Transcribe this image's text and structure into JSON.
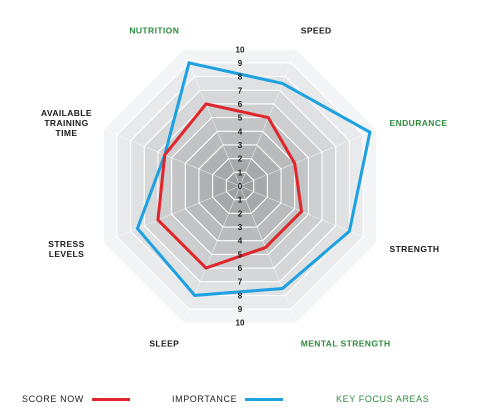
{
  "chart_data": {
    "type": "radar",
    "axes": [
      {
        "label": [
          "SPEED"
        ],
        "key_focus": false
      },
      {
        "label": [
          "ENDURANCE"
        ],
        "key_focus": true
      },
      {
        "label": [
          "STRENGTH"
        ],
        "key_focus": false
      },
      {
        "label": [
          "MENTAL STRENGTH"
        ],
        "key_focus": true
      },
      {
        "label": [
          "SLEEP"
        ],
        "key_focus": false
      },
      {
        "label": [
          "STRESS",
          "LEVELS"
        ],
        "key_focus": false
      },
      {
        "label": [
          "AVAILABLE",
          "TRAINING",
          "TIME"
        ],
        "key_focus": false
      },
      {
        "label": [
          "NUTRITION"
        ],
        "key_focus": true
      }
    ],
    "range": [
      0,
      10
    ],
    "upper_ticks": [
      "1",
      "2",
      "3",
      "4",
      "5",
      "6",
      "7",
      "8",
      "9",
      "10"
    ],
    "lower_ticks": [
      "1",
      "2",
      "3",
      "4",
      "5",
      "6",
      "7",
      "8",
      "9",
      "10"
    ],
    "center_tick": "0",
    "series": [
      {
        "name": "SCORE NOW",
        "color": "#e0262b",
        "values": [
          5,
          4,
          4.5,
          4.5,
          6,
          6,
          5.5,
          6
        ]
      },
      {
        "name": "IMPORTANCE",
        "color": "#1da1e0",
        "values": [
          7.5,
          9.5,
          8,
          7.5,
          8,
          7.5,
          5.5,
          9
        ]
      }
    ],
    "legend": {
      "position": "bottom",
      "score_label": "SCORE NOW",
      "importance_label": "IMPORTANCE",
      "key_label": "KEY FOCUS AREAS"
    },
    "colors": {
      "key_focus_text": "#2e8b3d",
      "score": "#e0262b",
      "importance": "#1da1e0"
    }
  }
}
